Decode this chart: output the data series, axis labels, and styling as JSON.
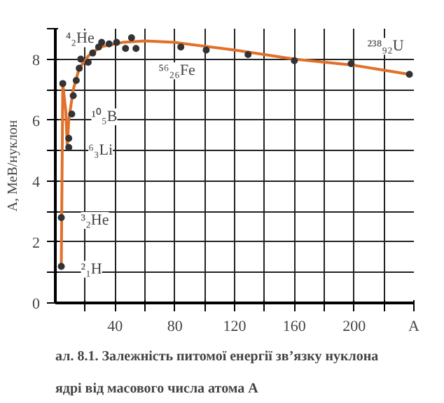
{
  "chart_data": {
    "type": "scatter",
    "title": "ал. 8.1. Залежність питомої енергії зв’язку нуклона\nядрі від масового числа атома A",
    "ylabel": "A, МеВ/нуклон",
    "xlim": [
      0,
      240
    ],
    "ylim": [
      0,
      9
    ],
    "xticks": [
      {
        "value": 20,
        "label": null
      },
      40,
      {
        "value": 60,
        "label": null
      },
      80,
      {
        "value": 100,
        "label": null
      },
      120,
      {
        "value": 140,
        "label": null
      },
      160,
      {
        "value": 180,
        "label": null
      },
      200,
      {
        "value": 220,
        "label": null
      },
      {
        "value": 240,
        "label": "A"
      }
    ],
    "yticks": [
      0,
      {
        "value": 1,
        "label": null
      },
      2,
      {
        "value": 3,
        "label": null
      },
      4,
      {
        "value": 5,
        "label": null
      },
      6,
      {
        "value": 7,
        "label": null
      },
      8,
      {
        "value": 9,
        "label": null
      }
    ],
    "grid": true,
    "marker": "circle",
    "series": [
      {
        "type": "line",
        "marker": "none",
        "color": "#e0702a",
        "x": [
          4,
          5,
          7,
          8,
          9,
          12,
          16,
          22,
          30,
          45,
          60,
          80,
          120,
          160,
          200,
          237
        ],
        "values": [
          1.2,
          7.2,
          6.3,
          5.1,
          6.0,
          7.0,
          7.7,
          8.1,
          8.4,
          8.55,
          8.6,
          8.55,
          8.3,
          8.0,
          7.8,
          7.5
        ]
      },
      {
        "color": "#333333",
        "x": [
          4,
          4,
          5,
          9,
          9,
          11,
          12,
          14,
          16,
          17,
          22,
          25,
          29,
          31,
          36,
          41,
          47,
          51,
          54,
          84,
          101,
          129,
          160,
          198,
          237
        ],
        "values": [
          1.2,
          2.8,
          7.2,
          5.1,
          5.4,
          6.2,
          6.8,
          7.3,
          7.7,
          8.0,
          7.9,
          8.2,
          8.4,
          8.55,
          8.5,
          8.55,
          8.35,
          8.7,
          8.35,
          8.4,
          8.3,
          8.15,
          7.95,
          7.85,
          7.5
        ]
      }
    ],
    "annotations": [
      {
        "text": "⁴₂He",
        "x": 5,
        "y": 7.2
      },
      {
        "text": "¹⁰₅B",
        "x": 11,
        "y": 6.2
      },
      {
        "text": "⁶₃Li",
        "x": 9,
        "y": 5.1
      },
      {
        "text": "³₂He",
        "x": 4,
        "y": 2.8
      },
      {
        "text": "²₁H",
        "x": 4,
        "y": 1.2
      },
      {
        "text": "⁵⁶₂₆Fe",
        "x": 54,
        "y": 8.35
      },
      {
        "text": "²³⁸₉₂U",
        "x": 237,
        "y": 7.5
      }
    ]
  }
}
